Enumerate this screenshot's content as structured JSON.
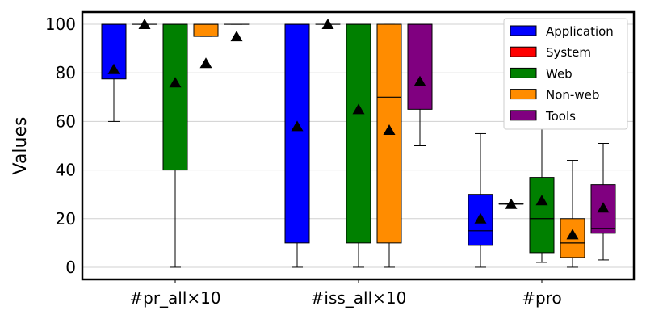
{
  "chart_data": {
    "type": "box",
    "title": "",
    "xlabel": "",
    "ylabel": "Values",
    "ylim": [
      -5,
      105
    ],
    "yticks": [
      0,
      20,
      40,
      60,
      80,
      100
    ],
    "grid": "horizontal",
    "legend_position": "top-right",
    "categories": [
      "#pr_all×10",
      "#iss_all×10",
      "#pro"
    ],
    "series": [
      {
        "name": "Application",
        "color": "#0000ff",
        "boxes": [
          {
            "whisker_low": 60,
            "q1": 77.5,
            "median": 100,
            "q3": 100,
            "whisker_high": 100,
            "mean": 81.5
          },
          {
            "whisker_low": 0,
            "q1": 10,
            "median": 100,
            "q3": 100,
            "whisker_high": 100,
            "mean": 58
          },
          {
            "whisker_low": 0,
            "q1": 9,
            "median": 15,
            "q3": 30,
            "whisker_high": 55,
            "mean": 20
          }
        ]
      },
      {
        "name": "System",
        "color": "#ff0000",
        "boxes": [
          {
            "whisker_low": 100,
            "q1": 100,
            "median": 100,
            "q3": 100,
            "whisker_high": 100,
            "mean": 100
          },
          {
            "whisker_low": 100,
            "q1": 100,
            "median": 100,
            "q3": 100,
            "whisker_high": 100,
            "mean": 100
          },
          {
            "whisker_low": 26,
            "q1": 26,
            "median": 26,
            "q3": 26,
            "whisker_high": 26,
            "mean": 26
          }
        ]
      },
      {
        "name": "Web",
        "color": "#008000",
        "boxes": [
          {
            "whisker_low": 0,
            "q1": 40,
            "median": 100,
            "q3": 100,
            "whisker_high": 100,
            "mean": 76
          },
          {
            "whisker_low": 0,
            "q1": 10,
            "median": 100,
            "q3": 100,
            "whisker_high": 100,
            "mean": 65
          },
          {
            "whisker_low": 2,
            "q1": 6,
            "median": 20,
            "q3": 37,
            "whisker_high": 64,
            "mean": 27.5
          }
        ]
      },
      {
        "name": "Non-web",
        "color": "#ff8c00",
        "boxes": [
          {
            "whisker_low": 95,
            "q1": 95,
            "median": 100,
            "q3": 100,
            "whisker_high": 100,
            "mean": 84
          },
          {
            "whisker_low": 0,
            "q1": 10,
            "median": 70,
            "q3": 100,
            "whisker_high": 100,
            "mean": 56.5
          },
          {
            "whisker_low": 0,
            "q1": 4,
            "median": 10,
            "q3": 20,
            "whisker_high": 44,
            "mean": 13.5
          }
        ]
      },
      {
        "name": "Tools",
        "color": "#800080",
        "boxes": [
          {
            "whisker_low": 100,
            "q1": 100,
            "median": 100,
            "q3": 100,
            "whisker_high": 100,
            "mean": 95
          },
          {
            "whisker_low": 50,
            "q1": 65,
            "median": 100,
            "q3": 100,
            "whisker_high": 100,
            "mean": 76.5
          },
          {
            "whisker_low": 3,
            "q1": 14,
            "median": 16,
            "q3": 34,
            "whisker_high": 51,
            "mean": 24.5
          }
        ]
      }
    ]
  }
}
